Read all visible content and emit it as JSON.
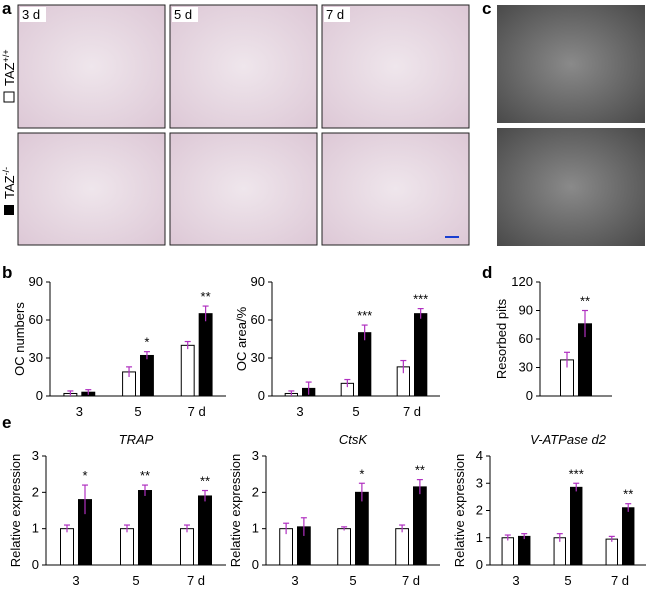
{
  "panel_labels": [
    "a",
    "b",
    "c",
    "d",
    "e"
  ],
  "micrographs": {
    "days": [
      "3 d",
      "5 d",
      "7 d"
    ],
    "genotypes": [
      {
        "base": "TAZ",
        "sup": "+/+"
      },
      {
        "base": "TAZ",
        "sup": "-/-"
      }
    ]
  },
  "chart_data": [
    {
      "type": "bar",
      "ylabel": "OC numbers",
      "categories": [
        "3",
        "5",
        "7 d"
      ],
      "ylim": [
        0,
        90
      ],
      "yticks": [
        0,
        30,
        60,
        90
      ],
      "series": [
        {
          "color": "#ffffff",
          "values": [
            2,
            19,
            40
          ],
          "errors": [
            2,
            4,
            3
          ]
        },
        {
          "color": "#000000",
          "values": [
            3,
            32,
            65
          ],
          "errors": [
            2,
            3,
            6
          ]
        }
      ],
      "annotations": [
        null,
        "*",
        "**"
      ]
    },
    {
      "type": "bar",
      "ylabel": "OC area/%",
      "categories": [
        "3",
        "5",
        "7 d"
      ],
      "ylim": [
        0,
        90
      ],
      "yticks": [
        0,
        30,
        60,
        90
      ],
      "series": [
        {
          "color": "#ffffff",
          "values": [
            2,
            10,
            23
          ],
          "errors": [
            2,
            3,
            5
          ]
        },
        {
          "color": "#000000",
          "values": [
            6,
            50,
            65
          ],
          "errors": [
            5,
            6,
            4
          ]
        }
      ],
      "annotations": [
        null,
        "***",
        "***"
      ]
    },
    {
      "type": "bar",
      "ylabel": "Resorbed pits",
      "categories": [
        null
      ],
      "ylim": [
        0,
        120
      ],
      "yticks": [
        0,
        30,
        60,
        90,
        120
      ],
      "series": [
        {
          "color": "#ffffff",
          "values": [
            38
          ],
          "errors": [
            8
          ]
        },
        {
          "color": "#000000",
          "values": [
            76
          ],
          "errors": [
            14
          ]
        }
      ],
      "annotations": [
        "**"
      ]
    },
    {
      "type": "bar",
      "title": "TRAP",
      "ylabel": "Relative expression",
      "categories": [
        "3",
        "5",
        "7 d"
      ],
      "ylim": [
        0,
        3
      ],
      "yticks": [
        0,
        1,
        2,
        3
      ],
      "series": [
        {
          "color": "#ffffff",
          "values": [
            1.0,
            1.0,
            1.0
          ],
          "errors": [
            0.1,
            0.1,
            0.1
          ]
        },
        {
          "color": "#000000",
          "values": [
            1.8,
            2.05,
            1.9
          ],
          "errors": [
            0.4,
            0.15,
            0.15
          ]
        }
      ],
      "annotations": [
        "*",
        "**",
        "**"
      ]
    },
    {
      "type": "bar",
      "title": "CtsK",
      "ylabel": "Relative expression",
      "categories": [
        "3",
        "5",
        "7 d"
      ],
      "ylim": [
        0,
        3
      ],
      "yticks": [
        0,
        1,
        2,
        3
      ],
      "series": [
        {
          "color": "#ffffff",
          "values": [
            1.0,
            1.0,
            1.0
          ],
          "errors": [
            0.15,
            0.05,
            0.1
          ]
        },
        {
          "color": "#000000",
          "values": [
            1.05,
            2.0,
            2.15
          ],
          "errors": [
            0.25,
            0.25,
            0.2
          ]
        }
      ],
      "annotations": [
        null,
        "*",
        "**"
      ]
    },
    {
      "type": "bar",
      "title": "V-ATPase d2",
      "ylabel": "Relative expression",
      "categories": [
        "3",
        "5",
        "7 d"
      ],
      "ylim": [
        0,
        4
      ],
      "yticks": [
        0,
        1,
        2,
        3,
        4
      ],
      "series": [
        {
          "color": "#ffffff",
          "values": [
            1.0,
            1.0,
            0.95
          ],
          "errors": [
            0.1,
            0.15,
            0.1
          ]
        },
        {
          "color": "#000000",
          "values": [
            1.05,
            2.85,
            2.1
          ],
          "errors": [
            0.1,
            0.15,
            0.15
          ]
        }
      ],
      "annotations": [
        null,
        "***",
        "**"
      ]
    }
  ]
}
